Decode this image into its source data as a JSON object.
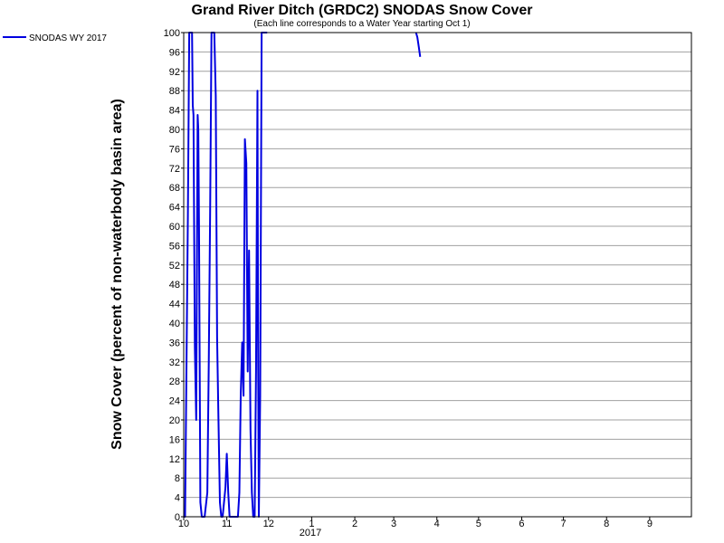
{
  "chart_data": {
    "type": "line",
    "title": "Grand River Ditch (GRDC2) SNODAS Snow Cover",
    "subtitle": "(Each line corresponds to a Water Year starting Oct 1)",
    "ylabel": "Snow Cover (percent of non-waterbody basin area)",
    "xlabel": "",
    "ylim": [
      0,
      100
    ],
    "y_ticks": [
      0,
      4,
      8,
      12,
      16,
      20,
      24,
      28,
      32,
      36,
      40,
      44,
      48,
      52,
      56,
      60,
      64,
      68,
      72,
      76,
      80,
      84,
      88,
      92,
      96,
      100
    ],
    "x_ticks": [
      {
        "day": 0,
        "label": "10"
      },
      {
        "day": 31,
        "label": "11"
      },
      {
        "day": 61,
        "label": "12"
      },
      {
        "day": 92,
        "label": "1"
      },
      {
        "day": 123,
        "label": "2"
      },
      {
        "day": 151,
        "label": "3"
      },
      {
        "day": 182,
        "label": "4"
      },
      {
        "day": 212,
        "label": "5"
      },
      {
        "day": 243,
        "label": "6"
      },
      {
        "day": 273,
        "label": "7"
      },
      {
        "day": 304,
        "label": "8"
      },
      {
        "day": 335,
        "label": "9"
      }
    ],
    "year_label": "2017",
    "grid": true,
    "legend_position": "top-left",
    "series": [
      {
        "name": "SNODAS WY 2017",
        "color": "#0000e0",
        "points": [
          [
            0,
            0
          ],
          [
            1,
            0
          ],
          [
            3,
            62
          ],
          [
            4,
            100
          ],
          [
            6,
            100
          ],
          [
            6.5,
            85
          ],
          [
            7,
            83
          ],
          [
            8,
            35
          ],
          [
            9,
            20
          ],
          [
            10,
            83
          ],
          [
            10.5,
            80
          ],
          [
            11,
            60
          ],
          [
            12,
            3
          ],
          [
            13,
            0
          ],
          [
            15,
            0
          ],
          [
            17,
            5
          ],
          [
            18,
            32
          ],
          [
            19,
            63
          ],
          [
            20,
            100
          ],
          [
            22,
            100
          ],
          [
            23,
            87
          ],
          [
            24,
            37
          ],
          [
            25,
            20
          ],
          [
            26,
            3
          ],
          [
            27,
            0
          ],
          [
            28,
            0
          ],
          [
            30,
            6
          ],
          [
            31,
            13
          ],
          [
            32,
            5
          ],
          [
            33,
            0
          ],
          [
            36,
            0
          ],
          [
            39,
            0
          ],
          [
            40,
            5
          ],
          [
            41,
            25
          ],
          [
            42,
            36
          ],
          [
            43,
            25
          ],
          [
            44,
            78
          ],
          [
            45,
            73
          ],
          [
            46,
            30
          ],
          [
            47,
            55
          ],
          [
            48,
            18
          ],
          [
            49,
            5
          ],
          [
            50,
            0
          ],
          [
            51,
            0
          ],
          [
            52,
            30
          ],
          [
            53,
            88
          ],
          [
            53.5,
            35
          ],
          [
            54,
            0
          ],
          [
            55,
            25
          ],
          [
            56,
            100
          ],
          [
            57,
            100
          ],
          [
            59,
            100
          ],
          [
            60,
            100
          ]
        ],
        "late_points": [
          [
            167,
            100
          ],
          [
            168,
            99
          ],
          [
            169,
            97
          ],
          [
            170,
            95
          ]
        ]
      }
    ]
  }
}
